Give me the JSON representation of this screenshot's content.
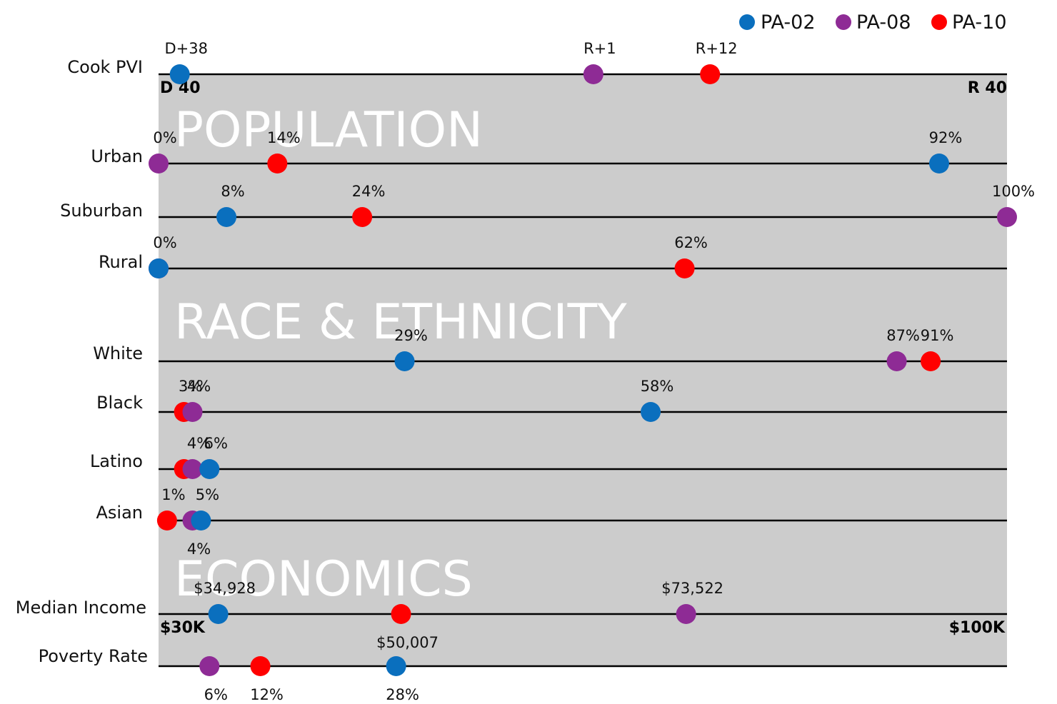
{
  "chart_data": {
    "type": "dot-plot",
    "legend": [
      {
        "key": "pa02",
        "name": "PA-02",
        "color": "#0a6fbe"
      },
      {
        "key": "pa08",
        "name": "PA-08",
        "color": "#8e2b95"
      },
      {
        "key": "pa10",
        "name": "PA-10",
        "color": "#ff0000"
      }
    ],
    "sections": [
      {
        "key": "population",
        "label": "POPULATION"
      },
      {
        "key": "race",
        "label": "RACE & ETHNICITY"
      },
      {
        "key": "economics",
        "label": "ECONOMICS"
      }
    ],
    "rows": [
      {
        "key": "cook_pvi",
        "label": "Cook PVI",
        "axis": {
          "min": -40,
          "max": 40,
          "min_label": "D 40",
          "max_label": "R 40"
        },
        "points": [
          {
            "series": "pa02",
            "value": -38,
            "label": "D+38",
            "label_pos": "above"
          },
          {
            "series": "pa08",
            "value": 1,
            "label": "R+1",
            "label_pos": "above"
          },
          {
            "series": "pa10",
            "value": 12,
            "label": "R+12",
            "label_pos": "above"
          }
        ]
      },
      {
        "key": "urban",
        "label": "Urban",
        "axis": {
          "min": 0,
          "max": 100
        },
        "points": [
          {
            "series": "pa02",
            "value": 92,
            "label": "92%",
            "label_pos": "above"
          },
          {
            "series": "pa08",
            "value": 0,
            "label": "0%",
            "label_pos": "above"
          },
          {
            "series": "pa10",
            "value": 14,
            "label": "14%",
            "label_pos": "above"
          }
        ]
      },
      {
        "key": "suburban",
        "label": "Suburban",
        "axis": {
          "min": 0,
          "max": 100
        },
        "points": [
          {
            "series": "pa02",
            "value": 8,
            "label": "8%",
            "label_pos": "above"
          },
          {
            "series": "pa08",
            "value": 100,
            "label": "100%",
            "label_pos": "above"
          },
          {
            "series": "pa10",
            "value": 24,
            "label": "24%",
            "label_pos": "above"
          }
        ]
      },
      {
        "key": "rural",
        "label": "Rural",
        "axis": {
          "min": 0,
          "max": 100
        },
        "points": [
          {
            "series": "pa02",
            "value": 0,
            "label": "",
            "label_pos": "above"
          },
          {
            "series": "pa08",
            "value": 0,
            "label": "0%",
            "label_pos": "above"
          },
          {
            "series": "pa10",
            "value": 62,
            "label": "62%",
            "label_pos": "above"
          }
        ]
      },
      {
        "key": "white",
        "label": "White",
        "axis": {
          "min": 0,
          "max": 100
        },
        "points": [
          {
            "series": "pa02",
            "value": 29,
            "label": "29%",
            "label_pos": "above"
          },
          {
            "series": "pa08",
            "value": 87,
            "label": "87%",
            "label_pos": "above"
          },
          {
            "series": "pa10",
            "value": 91,
            "label": "91%",
            "label_pos": "above"
          }
        ]
      },
      {
        "key": "black",
        "label": "Black",
        "axis": {
          "min": 0,
          "max": 100
        },
        "points": [
          {
            "series": "pa02",
            "value": 58,
            "label": "58%",
            "label_pos": "above"
          },
          {
            "series": "pa10",
            "value": 3,
            "label": "3%",
            "label_pos": "above"
          },
          {
            "series": "pa08",
            "value": 4,
            "label": "4%",
            "label_pos": "above"
          }
        ]
      },
      {
        "key": "latino",
        "label": "Latino",
        "axis": {
          "min": 0,
          "max": 100
        },
        "points": [
          {
            "series": "pa10",
            "value": 3,
            "label": "",
            "label_pos": "above"
          },
          {
            "series": "pa08",
            "value": 4,
            "label": "4%",
            "label_pos": "above"
          },
          {
            "series": "pa02",
            "value": 6,
            "label": "6%",
            "label_pos": "above"
          }
        ]
      },
      {
        "key": "asian",
        "label": "Asian",
        "axis": {
          "min": 0,
          "max": 100
        },
        "points": [
          {
            "series": "pa10",
            "value": 1,
            "label": "1%",
            "label_pos": "above"
          },
          {
            "series": "pa08",
            "value": 4,
            "label": "4%",
            "label_pos": "below"
          },
          {
            "series": "pa02",
            "value": 5,
            "label": "5%",
            "label_pos": "above"
          }
        ]
      },
      {
        "key": "median_income",
        "label": "Median Income",
        "axis": {
          "min": 30000,
          "max": 100000,
          "min_label": "$30K",
          "max_label": "$100K"
        },
        "points": [
          {
            "series": "pa02",
            "value": 34928,
            "label": "$34,928",
            "label_pos": "above"
          },
          {
            "series": "pa10",
            "value": 50007,
            "label": "$50,007",
            "label_pos": "below"
          },
          {
            "series": "pa08",
            "value": 73522,
            "label": "$73,522",
            "label_pos": "above"
          }
        ]
      },
      {
        "key": "poverty_rate",
        "label": "Poverty Rate",
        "axis": {
          "min": 0,
          "max": 100
        },
        "points": [
          {
            "series": "pa08",
            "value": 6,
            "label": "6%",
            "label_pos": "below"
          },
          {
            "series": "pa10",
            "value": 12,
            "label": "12%",
            "label_pos": "below"
          },
          {
            "series": "pa02",
            "value": 28,
            "label": "28%",
            "label_pos": "below"
          }
        ]
      }
    ]
  }
}
